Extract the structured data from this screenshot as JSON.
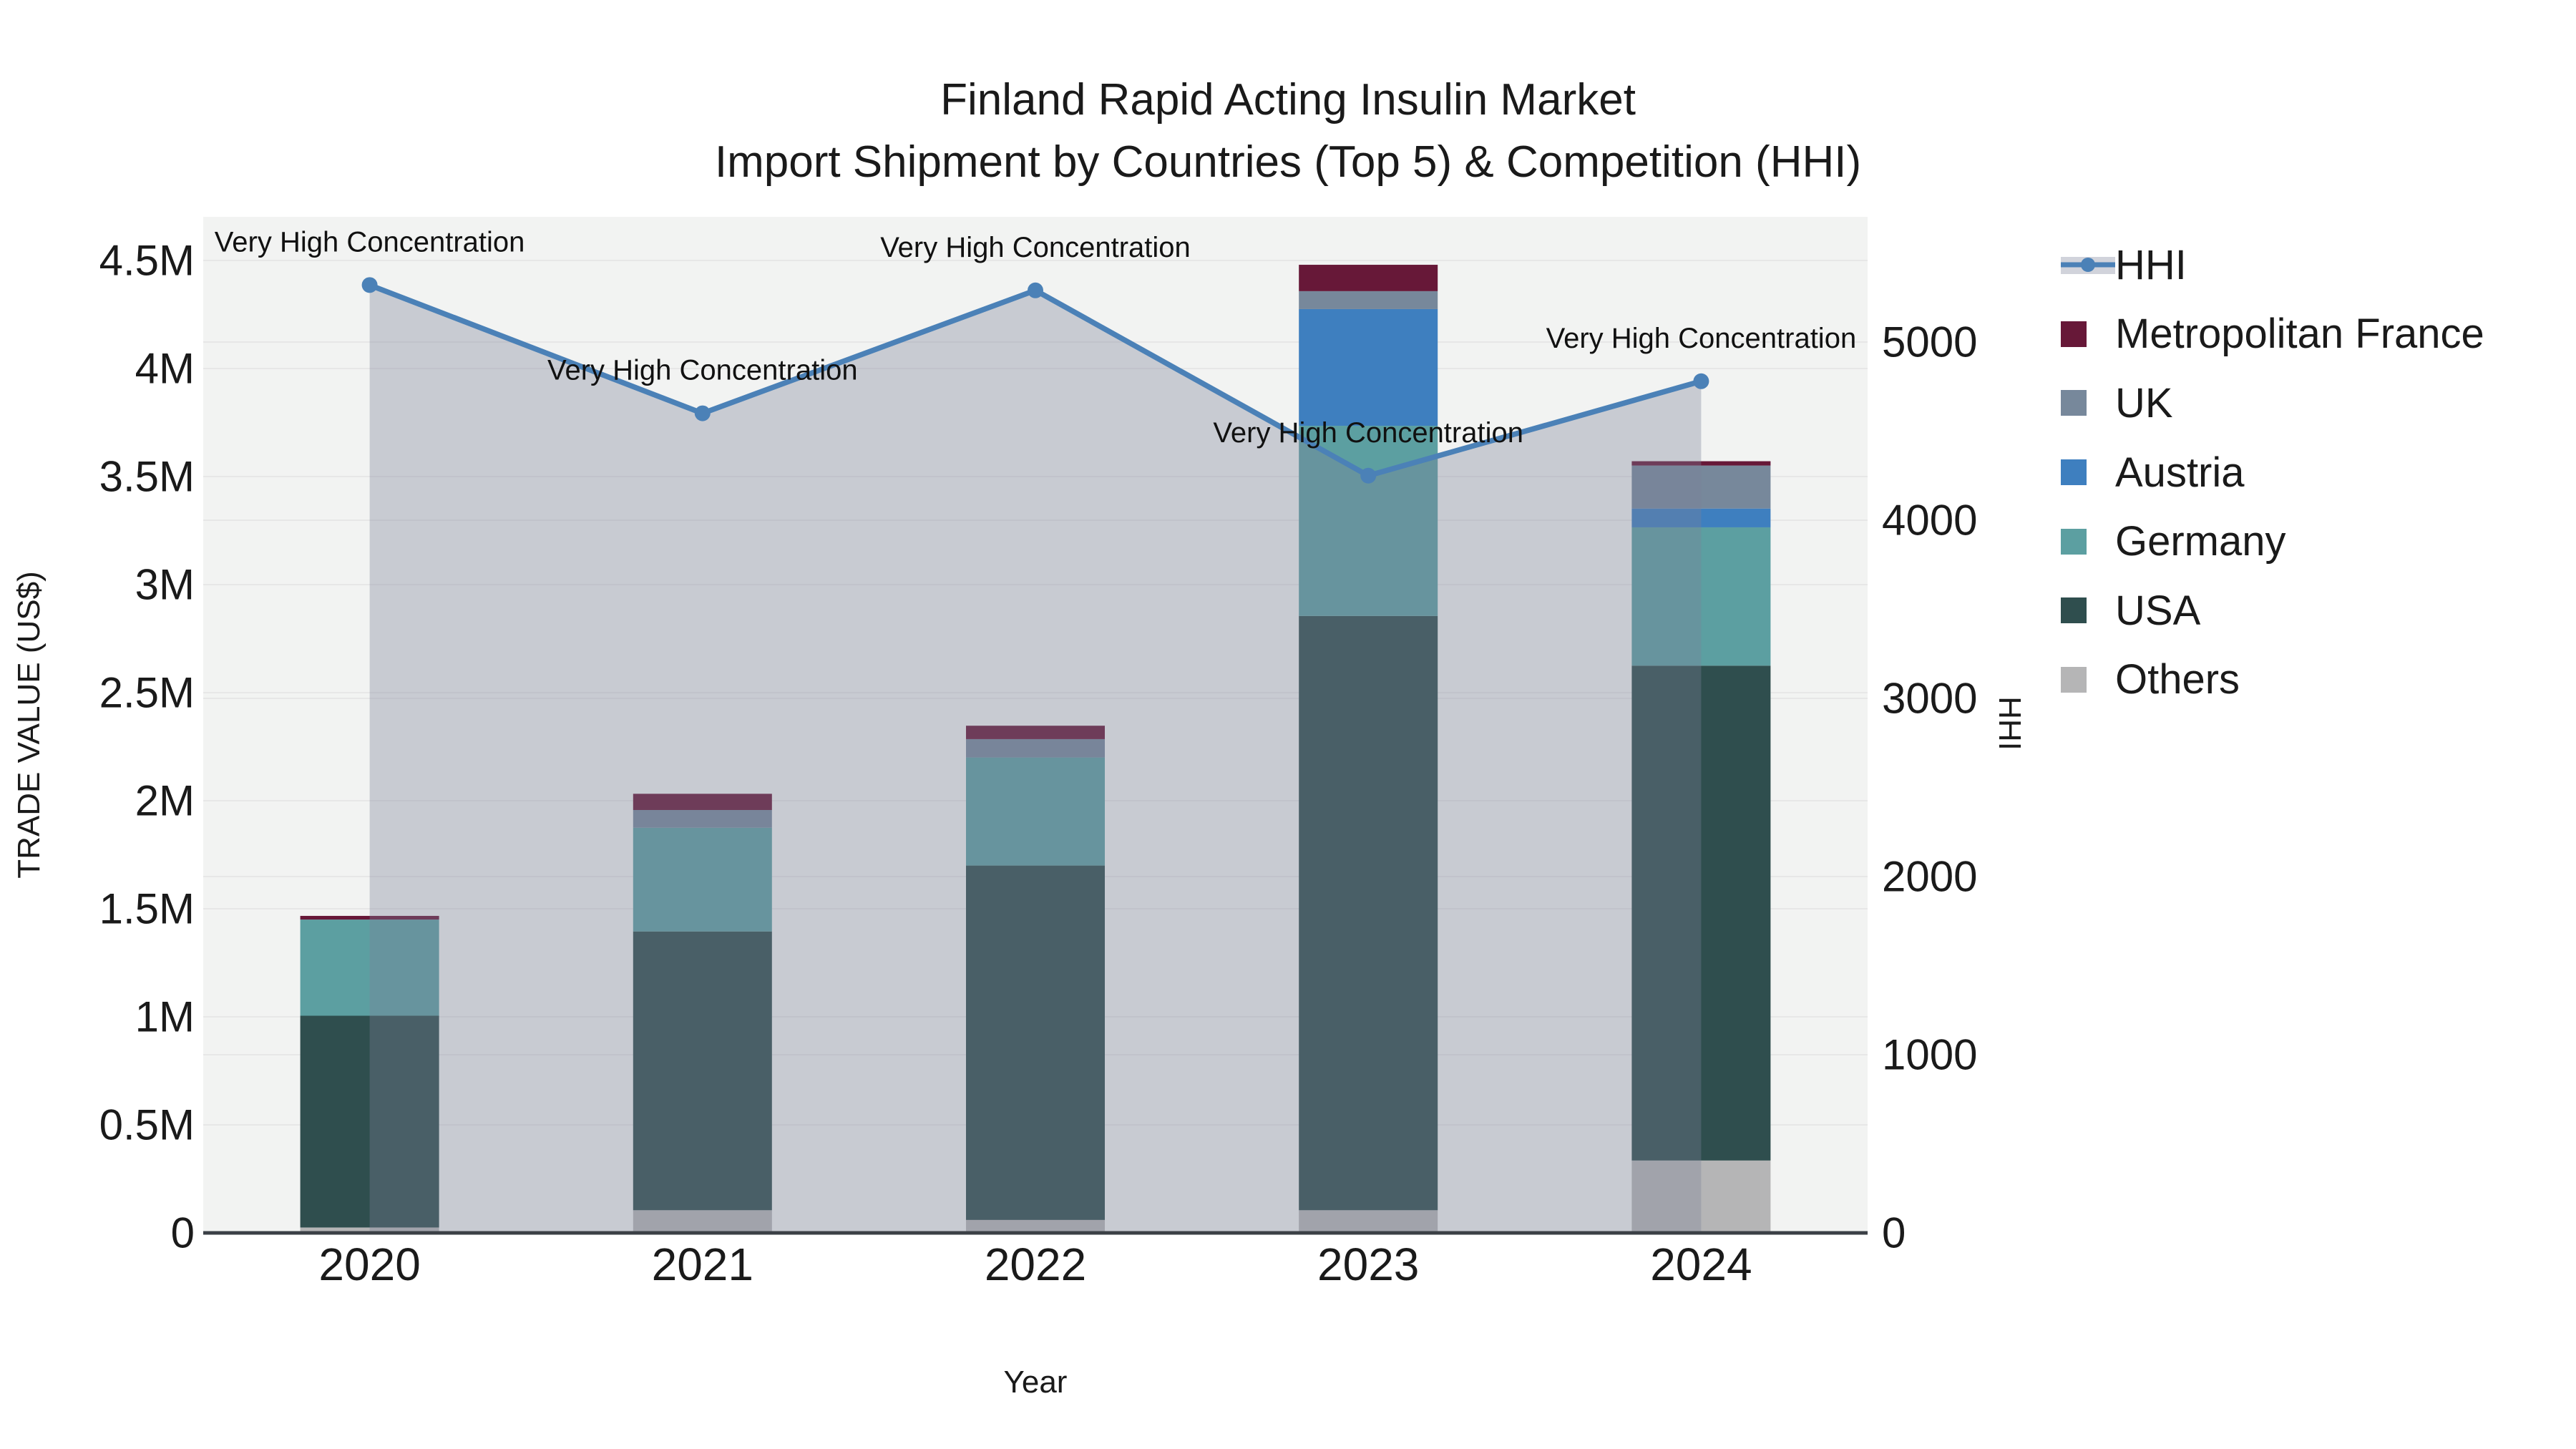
{
  "title": {
    "line1": "Finland Rapid Acting Insulin Market",
    "line2": "Import Shipment by Countries (Top 5) & Competition (HHI)"
  },
  "legend": {
    "items": [
      {
        "label": "HHI",
        "type": "line",
        "color": "#4B81B7",
        "band_color": "#D1D3DB"
      },
      {
        "label": "Metropolitan France",
        "type": "square",
        "color": "#671838"
      },
      {
        "label": "UK",
        "type": "square",
        "color": "#77889B"
      },
      {
        "label": "Austria",
        "type": "square",
        "color": "#3E7FBF"
      },
      {
        "label": "Germany",
        "type": "square",
        "color": "#5C9FA1"
      },
      {
        "label": "USA",
        "type": "square",
        "color": "#2F4E4E"
      },
      {
        "label": "Others",
        "type": "square",
        "color": "#B5B5B6"
      }
    ]
  },
  "chart_data": {
    "type": "bar",
    "subtype": "stacked-bars-with-line",
    "categories": [
      "2020",
      "2021",
      "2022",
      "2023",
      "2024"
    ],
    "series": [
      {
        "name": "Others",
        "type": "bar",
        "color": "#B5B5B6",
        "values": [
          25000,
          105000,
          60000,
          105000,
          335000
        ]
      },
      {
        "name": "USA",
        "type": "bar",
        "color": "#2F4E4E",
        "values": [
          980000,
          1290000,
          1640000,
          2750000,
          2290000
        ]
      },
      {
        "name": "Germany",
        "type": "bar",
        "color": "#5C9FA1",
        "values": [
          445000,
          480000,
          500000,
          880000,
          640000
        ]
      },
      {
        "name": "Austria",
        "type": "bar",
        "color": "#3E7FBF",
        "values": [
          0,
          0,
          0,
          540000,
          87000
        ]
      },
      {
        "name": "UK",
        "type": "bar",
        "color": "#77889B",
        "values": [
          0,
          82000,
          85000,
          83000,
          199000
        ]
      },
      {
        "name": "Metropolitan France",
        "type": "bar",
        "color": "#671838",
        "values": [
          17000,
          75000,
          62000,
          122000,
          20000
        ]
      },
      {
        "name": "HHI",
        "type": "line",
        "axis": "right",
        "color": "#4B81B7",
        "area_fill": "rgba(123,130,152,0.35)",
        "values": [
          5320,
          4600,
          5290,
          4250,
          4780
        ]
      }
    ],
    "annotations": [
      "Very High Concentration",
      "Very High Concentration",
      "Very High Concentration",
      "Very High Concentration",
      "Very High Concentration"
    ],
    "left_axis": {
      "title": "TRADE VALUE (US$)",
      "ticks": [
        {
          "v": 0,
          "label": "0"
        },
        {
          "v": 500000,
          "label": "0.5M"
        },
        {
          "v": 1000000,
          "label": "1M"
        },
        {
          "v": 1500000,
          "label": "1.5M"
        },
        {
          "v": 2000000,
          "label": "2M"
        },
        {
          "v": 2500000,
          "label": "2.5M"
        },
        {
          "v": 3000000,
          "label": "3M"
        },
        {
          "v": 3500000,
          "label": "3.5M"
        },
        {
          "v": 4000000,
          "label": "4M"
        },
        {
          "v": 4500000,
          "label": "4.5M"
        }
      ],
      "range": [
        0,
        4700000
      ]
    },
    "right_axis": {
      "title": "HHI",
      "ticks": [
        {
          "v": 0,
          "label": "0"
        },
        {
          "v": 1000,
          "label": "1000"
        },
        {
          "v": 2000,
          "label": "2000"
        },
        {
          "v": 3000,
          "label": "3000"
        },
        {
          "v": 4000,
          "label": "4000"
        },
        {
          "v": 5000,
          "label": "5000"
        }
      ],
      "range": [
        0,
        5700
      ]
    },
    "x_axis": {
      "title": "Year"
    },
    "grid": true,
    "legend_position": "right"
  },
  "colors": {
    "plot_background": "#F2F3F2",
    "gridline": "#E7E7E7",
    "axis_line": "#3B4046",
    "text": "#1A1A1A"
  }
}
